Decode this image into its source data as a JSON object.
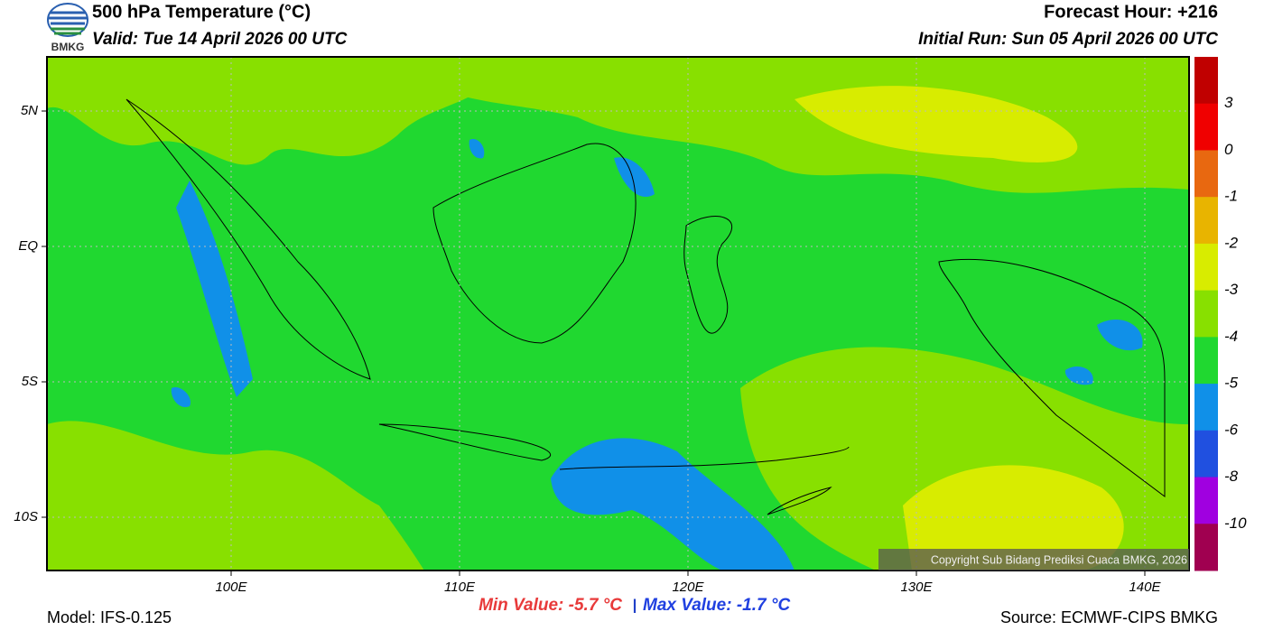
{
  "header": {
    "logo_text": "BMKG",
    "title": "500 hPa Temperature (°C)",
    "valid": "Valid: Tue 14 April 2026 00 UTC",
    "forecast_hour": "Forecast Hour: +216",
    "initial_run": "Initial Run: Sun 05 April 2026 00 UTC"
  },
  "map": {
    "lat_labels": [
      "5N",
      "EQ",
      "5S",
      "10S"
    ],
    "lon_labels": [
      "100E",
      "110E",
      "120E",
      "130E",
      "140E"
    ],
    "copyright": "Copyright Sub Bidang Prediksi Cuaca BMKG, 2026"
  },
  "colorbar": {
    "colors": [
      "#c00000",
      "#f00000",
      "#e86810",
      "#e8b400",
      "#d8ec00",
      "#88e000",
      "#20d830",
      "#1090e8",
      "#2050e0",
      "#a000e0",
      "#a00050"
    ],
    "labels": [
      "3",
      "0",
      "-1",
      "-2",
      "-3",
      "-4",
      "-5",
      "-6",
      "-8",
      "-10"
    ]
  },
  "footer": {
    "model": "Model: IFS-0.125",
    "min_value": "Min Value: -5.7 °C",
    "separator": "|",
    "max_value": "Max Value: -1.7 °C",
    "source": "Source: ECMWF-CIPS BMKG"
  }
}
